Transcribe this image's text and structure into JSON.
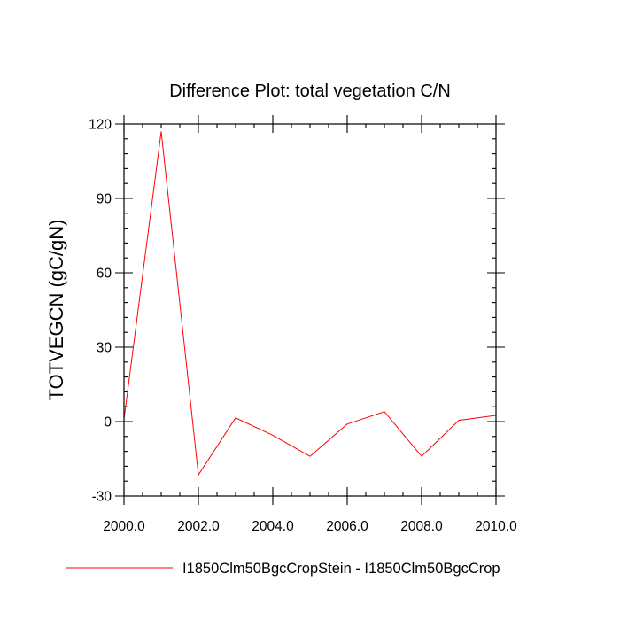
{
  "chart_data": {
    "type": "line",
    "title": "Difference Plot: total vegetation C/N",
    "xlabel": "",
    "ylabel": "TOTVEGCN  (gC/gN)",
    "xlim": [
      2000,
      2010
    ],
    "ylim": [
      -30,
      120
    ],
    "x_ticks": [
      2000,
      2002,
      2004,
      2006,
      2008,
      2010
    ],
    "x_tick_labels": [
      "2000.0",
      "2002.0",
      "2004.0",
      "2006.0",
      "2008.0",
      "2010.0"
    ],
    "y_ticks": [
      -30,
      0,
      30,
      60,
      90,
      120
    ],
    "y_tick_labels": [
      "-30",
      "0",
      "30",
      "60",
      "90",
      "120"
    ],
    "grid": false,
    "legend_position": "bottom",
    "series": [
      {
        "name": "I1850Clm50BgcCropStein - I1850Clm50BgcCrop",
        "color": "#ff0000",
        "x": [
          2000,
          2001,
          2002,
          2003,
          2004,
          2005,
          2006,
          2007,
          2008,
          2009,
          2010
        ],
        "y": [
          1,
          117,
          -21.5,
          1.5,
          -5.5,
          -14,
          -1,
          4,
          -14,
          0.5,
          2.5
        ]
      }
    ]
  }
}
